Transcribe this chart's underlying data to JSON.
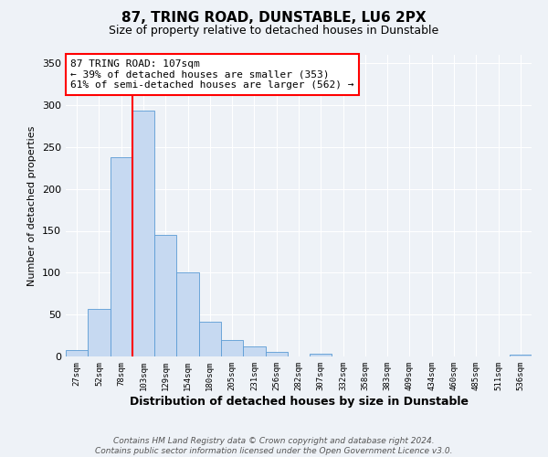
{
  "title": "87, TRING ROAD, DUNSTABLE, LU6 2PX",
  "subtitle": "Size of property relative to detached houses in Dunstable",
  "xlabel": "Distribution of detached houses by size in Dunstable",
  "ylabel": "Number of detached properties",
  "bin_labels": [
    "27sqm",
    "52sqm",
    "78sqm",
    "103sqm",
    "129sqm",
    "154sqm",
    "180sqm",
    "205sqm",
    "231sqm",
    "256sqm",
    "282sqm",
    "307sqm",
    "332sqm",
    "358sqm",
    "383sqm",
    "409sqm",
    "434sqm",
    "460sqm",
    "485sqm",
    "511sqm",
    "536sqm"
  ],
  "bar_heights": [
    8,
    57,
    238,
    293,
    145,
    100,
    42,
    20,
    12,
    5,
    0,
    3,
    0,
    0,
    0,
    0,
    0,
    0,
    0,
    0,
    2
  ],
  "bar_color": "#c6d9f1",
  "bar_edge_color": "#5b9bd5",
  "vline_color": "red",
  "annotation_text": "87 TRING ROAD: 107sqm\n← 39% of detached houses are smaller (353)\n61% of semi-detached houses are larger (562) →",
  "annotation_box_color": "white",
  "annotation_box_edge_color": "red",
  "ylim": [
    0,
    360
  ],
  "yticks": [
    0,
    50,
    100,
    150,
    200,
    250,
    300,
    350
  ],
  "background_color": "#eef2f7",
  "grid_color": "white",
  "footer_text": "Contains HM Land Registry data © Crown copyright and database right 2024.\nContains public sector information licensed under the Open Government Licence v3.0.",
  "title_fontsize": 11,
  "subtitle_fontsize": 9,
  "xlabel_fontsize": 9,
  "ylabel_fontsize": 8,
  "annotation_fontsize": 8,
  "footer_fontsize": 6.5
}
